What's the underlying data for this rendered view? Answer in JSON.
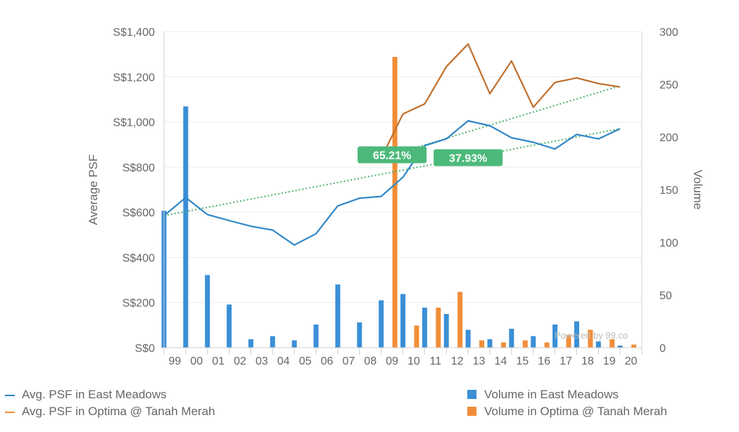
{
  "chart_data": {
    "type": "bar+line",
    "categories": [
      "99",
      "00",
      "01",
      "02",
      "03",
      "04",
      "05",
      "06",
      "07",
      "08",
      "09",
      "10",
      "11",
      "12",
      "13",
      "14",
      "15",
      "16",
      "17",
      "18",
      "19",
      "20"
    ],
    "y_left": {
      "label": "Average PSF",
      "ylim": [
        0,
        1400
      ],
      "ticks": [
        0,
        200,
        400,
        600,
        800,
        1000,
        1200,
        1400
      ],
      "tick_labels": [
        "S$0",
        "S$200",
        "S$400",
        "S$600",
        "S$800",
        "S$1,000",
        "S$1,200",
        "S$1,400"
      ]
    },
    "y_right": {
      "label": "Volume",
      "ylim": [
        0,
        300
      ],
      "ticks": [
        0,
        50,
        100,
        150,
        200,
        250,
        300
      ],
      "tick_labels": [
        "0",
        "50",
        "100",
        "150",
        "200",
        "250",
        "300"
      ]
    },
    "series": [
      {
        "name": "Avg. PSF in East Meadows",
        "kind": "line",
        "axis": "left",
        "color": "#2f86c7",
        "points": [
          [
            -0.5,
            585
          ],
          [
            0.5,
            665
          ],
          [
            1.5,
            590
          ],
          [
            2.5,
            563
          ],
          [
            3.5,
            538
          ],
          [
            4.5,
            521
          ],
          [
            5.5,
            455
          ],
          [
            6.5,
            505
          ],
          [
            7.5,
            628
          ],
          [
            8.5,
            662
          ],
          [
            9.5,
            670
          ],
          [
            10.5,
            755
          ],
          [
            11.5,
            895
          ],
          [
            12.5,
            925
          ],
          [
            13.5,
            1005
          ],
          [
            14.5,
            983
          ],
          [
            15.5,
            930
          ],
          [
            16.5,
            910
          ],
          [
            17.5,
            880
          ],
          [
            18.5,
            945
          ],
          [
            19.5,
            925
          ],
          [
            20.5,
            970
          ]
        ]
      },
      {
        "name": "Avg. PSF in Optima @ Tanah Merah",
        "kind": "line",
        "axis": "left",
        "color": "#c06e2a",
        "points": [
          [
            9.5,
            840
          ],
          [
            10.5,
            1035
          ],
          [
            11.5,
            1080
          ],
          [
            12.5,
            1245
          ],
          [
            13.5,
            1345
          ],
          [
            14.5,
            1125
          ],
          [
            15.5,
            1270
          ],
          [
            16.5,
            1065
          ],
          [
            17.5,
            1175
          ],
          [
            18.5,
            1195
          ],
          [
            19.5,
            1170
          ],
          [
            20.5,
            1155
          ]
        ]
      },
      {
        "name": "Volume in East Meadows",
        "kind": "bar",
        "axis": "right",
        "color": "#3a8fd6",
        "values": [
          130,
          229,
          69,
          41,
          8,
          11,
          7,
          22,
          60,
          24,
          45,
          51,
          38,
          32,
          17,
          8,
          18,
          11,
          22,
          25,
          6,
          2
        ]
      },
      {
        "name": "Volume in Optima @ Tanah Merah",
        "kind": "bar",
        "axis": "right",
        "color": "#f18d37",
        "values": [
          null,
          null,
          null,
          null,
          null,
          null,
          null,
          null,
          null,
          null,
          276,
          21,
          38,
          53,
          7,
          5,
          7,
          5,
          12,
          17,
          8,
          3
        ]
      }
    ],
    "trendlines": [
      {
        "series": "Avg. PSF in East Meadows",
        "from": [
          -0.5,
          585
        ],
        "to": [
          20.5,
          970
        ],
        "label": "37.93%",
        "label_at": 13.5
      },
      {
        "series": "Avg. PSF in Optima @ Tanah Merah",
        "from": [
          9.5,
          840
        ],
        "to": [
          20.5,
          1160
        ],
        "label": "65.21%",
        "label_at": 10.0
      }
    ],
    "watermark": "Powered by 99.co",
    "grid": true,
    "legend_position": "bottom"
  },
  "colors": {
    "east_line": "#2f86c7",
    "optima_line": "#c06e2a",
    "east_bar": "#3a8fd6",
    "optima_bar": "#f18d37",
    "trend": "#4caf6e",
    "badge": "#4cb97a",
    "axis_text": "#666666",
    "grid": "#ececec"
  },
  "legend": [
    {
      "label": "Avg. PSF in East Meadows",
      "kind": "line",
      "color": "#2f86c7"
    },
    {
      "label": "Avg. PSF in Optima @ Tanah Merah",
      "kind": "line",
      "color": "#f18d37"
    },
    {
      "label": "Volume in East Meadows",
      "kind": "square",
      "color": "#3a8fd6"
    },
    {
      "label": "Volume in Optima @ Tanah Merah",
      "kind": "square",
      "color": "#f18d37"
    }
  ]
}
